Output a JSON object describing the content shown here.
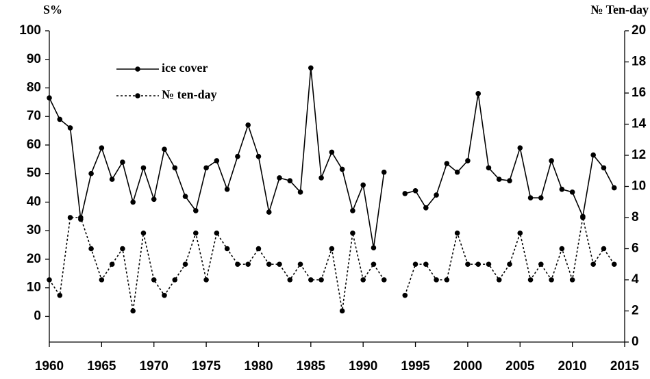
{
  "chart_data": {
    "type": "line",
    "y_label": "S%",
    "y2_label": "№ Ten-day",
    "x": [
      1960,
      1961,
      1962,
      1963,
      1964,
      1965,
      1966,
      1967,
      1968,
      1969,
      1970,
      1971,
      1972,
      1973,
      1974,
      1975,
      1976,
      1977,
      1978,
      1979,
      1980,
      1981,
      1982,
      1983,
      1984,
      1985,
      1986,
      1987,
      1988,
      1989,
      1990,
      1991,
      1992,
      1993,
      1994,
      1995,
      1996,
      1997,
      1998,
      1999,
      2000,
      2001,
      2002,
      2003,
      2004,
      2005,
      2006,
      2007,
      2008,
      2009,
      2010,
      2011,
      2012,
      2013,
      2014
    ],
    "series": [
      {
        "name": "ice cover",
        "color": "#000000",
        "line_style": "solid",
        "values": [
          76.5,
          69,
          66,
          34,
          50,
          59,
          48,
          54,
          40,
          52,
          41,
          58.5,
          52,
          42,
          37,
          52,
          54.5,
          44.5,
          56,
          67,
          56,
          36.5,
          48.5,
          47.5,
          43.5,
          87,
          48.5,
          57.5,
          51.5,
          37,
          46,
          24,
          50.5,
          null,
          43,
          44,
          38,
          42.5,
          53.5,
          50.5,
          54.5,
          78,
          52,
          48,
          47.5,
          59,
          41.5,
          41.5,
          54.5,
          44.5,
          43.5,
          35,
          56.5,
          52,
          45
        ]
      },
      {
        "name": "№ ten-day",
        "color": "#000000",
        "line_style": "dotted",
        "axis": "y2",
        "values": [
          4,
          3,
          8,
          8,
          6,
          4,
          5,
          6,
          2,
          7,
          4,
          3,
          4,
          5,
          7,
          4,
          7,
          6,
          5,
          5,
          6,
          5,
          5,
          4,
          5,
          4,
          4,
          6,
          2,
          7,
          4,
          5,
          4,
          null,
          3,
          5,
          5,
          4,
          4,
          7,
          5,
          5,
          5,
          4,
          5,
          7,
          4,
          5,
          4,
          6,
          4,
          8,
          5,
          6,
          5
        ]
      }
    ],
    "xlim": [
      1960,
      2015
    ],
    "xticks": [
      1960,
      1965,
      1970,
      1975,
      1980,
      1985,
      1990,
      1995,
      2000,
      2005,
      2010,
      2015
    ],
    "ylim": [
      -9,
      100
    ],
    "yticks": [
      0,
      10,
      20,
      30,
      40,
      50,
      60,
      70,
      80,
      90,
      100
    ],
    "y2lim": [
      0,
      20
    ],
    "y2ticks": [
      0,
      2,
      4,
      6,
      8,
      10,
      12,
      14,
      16,
      18,
      20
    ],
    "grid": false,
    "legend": "upper-left"
  }
}
